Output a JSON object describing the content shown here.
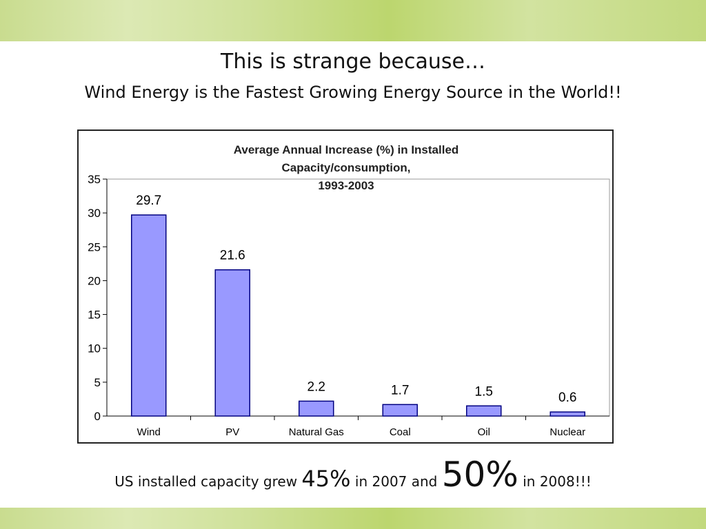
{
  "slide": {
    "title": "This is strange because…",
    "subtitle": "Wind Energy is the Fastest Growing Energy Source in the World!!",
    "footer": {
      "part1": "US installed capacity grew ",
      "value1": "45%",
      "part2": " in 2007 and ",
      "value2": "50%",
      "part3": " in 2008!!!"
    }
  },
  "colors": {
    "bar_fill": "#9999ff",
    "bar_stroke": "#000080"
  },
  "chart_data": {
    "type": "bar",
    "title_lines": [
      "Average Annual Increase (%) in Installed",
      "Capacity/consumption,",
      "1993-2003"
    ],
    "categories": [
      "Wind",
      "PV",
      "Natural Gas",
      "Coal",
      "Oil",
      "Nuclear"
    ],
    "values": [
      29.7,
      21.6,
      2.2,
      1.7,
      1.5,
      0.6
    ],
    "data_labels": [
      "29.7",
      "21.6",
      "2.2",
      "1.7",
      "1.5",
      "0.6"
    ],
    "ylim": [
      0,
      35
    ],
    "yticks": [
      0,
      5,
      10,
      15,
      20,
      25,
      30,
      35
    ],
    "grid": false,
    "legend": "none"
  }
}
